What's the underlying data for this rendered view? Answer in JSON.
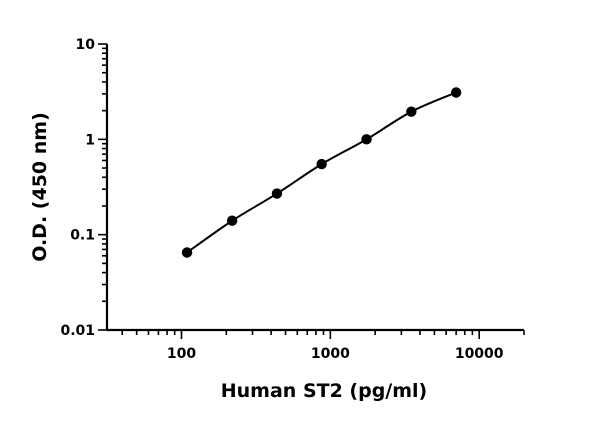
{
  "chart_data": {
    "type": "scatter",
    "title": "",
    "xlabel": "Human ST2 (pg/ml)",
    "ylabel": "O.D. (450 nm)",
    "x_scale": "log",
    "y_scale": "log",
    "xlim": [
      31.6,
      20000
    ],
    "ylim": [
      0.01,
      10
    ],
    "x_ticks": [
      100,
      1000,
      10000
    ],
    "x_tick_labels": [
      "100",
      "1000",
      "10000"
    ],
    "y_ticks": [
      0.01,
      0.1,
      1,
      10
    ],
    "y_tick_labels": [
      "0.01",
      "0.1",
      "1",
      "10"
    ],
    "grid": false,
    "legend": "none",
    "colors": {
      "points": "#000000",
      "curve": "#000000",
      "axes": "#000000"
    },
    "series": [
      {
        "x": [
          109,
          219,
          438,
          875,
          1750,
          3500,
          7000
        ],
        "y": [
          0.065,
          0.14,
          0.27,
          0.55,
          1.0,
          1.95,
          3.1
        ]
      }
    ]
  }
}
